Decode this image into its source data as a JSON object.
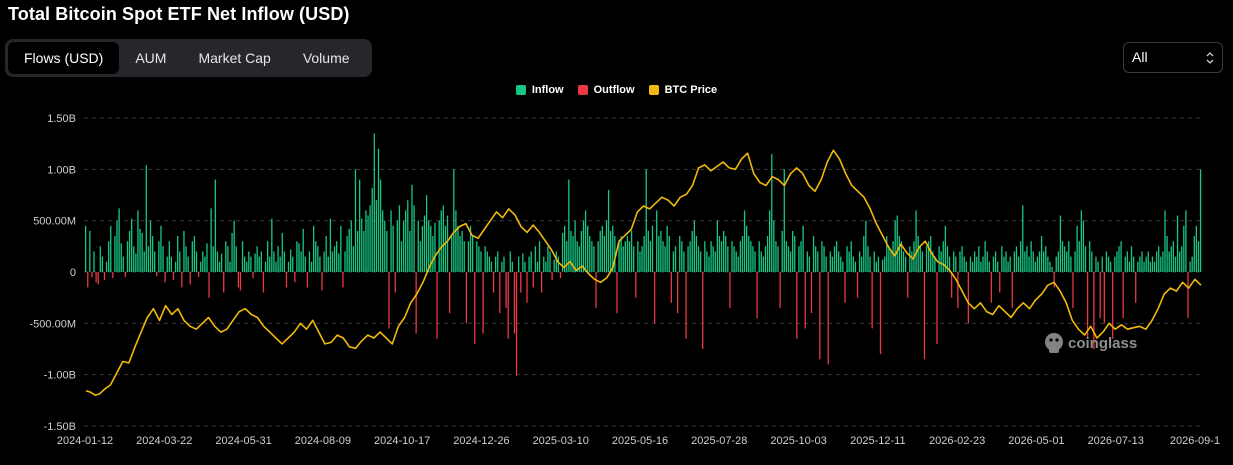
{
  "title": "Total Bitcoin Spot ETF Net Inflow (USD)",
  "tabs": [
    {
      "label": "Flows (USD)",
      "active": true
    },
    {
      "label": "AUM",
      "active": false
    },
    {
      "label": "Market Cap",
      "active": false
    },
    {
      "label": "Volume",
      "active": false
    }
  ],
  "range_select": {
    "value": "All"
  },
  "watermark": "coinglass",
  "colors": {
    "inflow": "#16c784",
    "outflow": "#ea3943",
    "btc_price": "#f0b90b",
    "grid": "#3a3a3a",
    "axis_text": "#cfcfcf"
  },
  "chart_data": {
    "type": "bar",
    "title": "Total Bitcoin Spot ETF Net Inflow (USD)",
    "legend": [
      {
        "name": "Inflow",
        "color": "#16c784"
      },
      {
        "name": "Outflow",
        "color": "#ea3943"
      },
      {
        "name": "BTC Price",
        "color": "#f0b90b"
      }
    ],
    "legend_position": "top-center",
    "grid": true,
    "y_ticks": [
      "1.50B",
      "1.00B",
      "500.00M",
      "0",
      "-500.00M",
      "-1.00B",
      "-1.50B"
    ],
    "ylim": [
      -1500000000,
      1500000000
    ],
    "x_ticks": [
      "2024-01-12",
      "2024-03-22",
      "2024-05-31",
      "2024-08-09",
      "2024-10-17",
      "2024-12-26",
      "2025-03-10",
      "2025-05-16",
      "2025-07-28",
      "2025-10-03",
      "2025-12-11",
      "2026-02-23",
      "2026-05-01",
      "2026-07-13",
      "2026-09-1"
    ],
    "flow_series": {
      "name": "Net Inflow",
      "unit": "USD",
      "values_millions": [
        450,
        -150,
        400,
        -50,
        200,
        -100,
        -120,
        250,
        150,
        -80,
        100,
        300,
        450,
        -60,
        350,
        500,
        620,
        280,
        150,
        -50,
        300,
        400,
        520,
        250,
        180,
        600,
        420,
        380,
        200,
        1040,
        250,
        500,
        350,
        200,
        -40,
        300,
        450,
        250,
        -100,
        150,
        300,
        150,
        -80,
        100,
        350,
        200,
        -150,
        400,
        250,
        150,
        -120,
        300,
        350,
        200,
        -50,
        100,
        200,
        150,
        280,
        -250,
        620,
        250,
        900,
        200,
        100,
        180,
        -200,
        300,
        250,
        100,
        380,
        500,
        250,
        -150,
        -180,
        300,
        150,
        100,
        200,
        150,
        -60,
        180,
        250,
        150,
        200,
        -200,
        100,
        300,
        150,
        520,
        200,
        100,
        250,
        150,
        380,
        200,
        -150,
        100,
        220,
        150,
        -100,
        300,
        280,
        200,
        420,
        150,
        -150,
        200,
        100,
        450,
        300,
        250,
        150,
        -180,
        200,
        350,
        150,
        520,
        200,
        250,
        300,
        180,
        450,
        -150,
        200,
        350,
        420,
        500,
        250,
        1000,
        400,
        900,
        520,
        400,
        600,
        550,
        650,
        820,
        1350,
        700,
        1200,
        900,
        600,
        500,
        400,
        -550,
        600,
        450,
        -200,
        500,
        650,
        300,
        500,
        600,
        700,
        400,
        850,
        650,
        -600,
        500,
        300,
        450,
        550,
        750,
        500,
        450,
        350,
        480,
        -650,
        500,
        600,
        650,
        450,
        550,
        -400,
        350,
        1000,
        600,
        450,
        350,
        400,
        300,
        -500,
        300,
        450,
        350,
        -700,
        300,
        250,
        200,
        -600,
        250,
        200,
        150,
        100,
        -200,
        150,
        200,
        -400,
        100,
        150,
        -350,
        -650,
        200,
        100,
        -600,
        -1010,
        150,
        -200,
        180,
        100,
        -300,
        150,
        200,
        -150,
        250,
        100,
        300,
        -200,
        150,
        100,
        250,
        200,
        -80,
        120,
        200,
        150,
        -60,
        380,
        450,
        300,
        900,
        400,
        350,
        500,
        300,
        250,
        400,
        500,
        600,
        450,
        350,
        300,
        250,
        -350,
        300,
        400,
        450,
        350,
        500,
        800,
        400,
        450,
        350,
        -400,
        300,
        350,
        250,
        300,
        350,
        300,
        400,
        250,
        -250,
        300,
        200,
        250,
        350,
        1000,
        400,
        300,
        450,
        -500,
        600,
        350,
        400,
        300,
        250,
        450,
        350,
        -300,
        200,
        250,
        -400,
        350,
        300,
        200,
        -650,
        250,
        300,
        400,
        500,
        350,
        250,
        200,
        -750,
        300,
        200,
        150,
        300,
        250,
        200,
        500,
        350,
        300,
        400,
        350,
        250,
        -350,
        300,
        250,
        200,
        150,
        300,
        350,
        600,
        450,
        350,
        300,
        250,
        200,
        -450,
        300,
        200,
        150,
        250,
        350,
        600,
        1150,
        500,
        300,
        250,
        -350,
        400,
        1000,
        300,
        250,
        200,
        400,
        350,
        -650,
        250,
        300,
        450,
        -550,
        200,
        150,
        -400,
        350,
        250,
        200,
        -850,
        300,
        250,
        150,
        -900,
        200,
        150,
        250,
        300,
        200,
        150,
        100,
        -300,
        250,
        200,
        300,
        150,
        100,
        -250,
        200,
        150,
        350,
        500,
        250,
        150,
        -550,
        200,
        100,
        150,
        -800,
        120,
        150,
        350,
        250,
        200,
        300,
        500,
        550,
        350,
        300,
        200,
        150,
        -250,
        250,
        200,
        300,
        600,
        350,
        250,
        200,
        -850,
        250,
        300,
        350,
        200,
        150,
        -700,
        250,
        200,
        300,
        450,
        250,
        150,
        -250,
        200,
        150,
        -350,
        200,
        250,
        150,
        100,
        -500,
        150,
        100,
        200,
        150,
        250,
        100,
        150,
        300,
        200,
        100,
        -300,
        150,
        200,
        100,
        -200,
        250,
        150,
        200,
        100,
        150,
        -350,
        200,
        250,
        150,
        300,
        650,
        200,
        250,
        150,
        300,
        200,
        100,
        150,
        200,
        350,
        200,
        250,
        150,
        100,
        50,
        -150,
        150,
        200,
        550,
        300,
        250,
        200,
        300,
        150,
        -350,
        200,
        450,
        300,
        600,
        500,
        250,
        -650,
        300,
        200,
        -750,
        150,
        100,
        -450,
        150,
        -500,
        200,
        150,
        100,
        -650,
        150,
        200,
        250,
        300,
        -450,
        150,
        200,
        100,
        250,
        150,
        -300,
        100,
        150,
        200,
        100,
        150,
        200,
        100,
        150,
        100,
        200,
        250,
        150,
        200,
        600,
        350,
        200,
        250,
        300,
        150,
        550,
        200,
        250,
        450,
        600,
        -450,
        100,
        150,
        350,
        450,
        300,
        1000
      ]
    },
    "price_series": {
      "name": "BTC Price",
      "unit": "USD",
      "points": [
        [
          0,
          42000
        ],
        [
          3,
          41500
        ],
        [
          6,
          40500
        ],
        [
          9,
          41000
        ],
        [
          12,
          42500
        ],
        [
          16,
          44000
        ],
        [
          20,
          48000
        ],
        [
          24,
          52000
        ],
        [
          28,
          51500
        ],
        [
          32,
          57000
        ],
        [
          36,
          62000
        ],
        [
          40,
          67000
        ],
        [
          44,
          70000
        ],
        [
          48,
          66000
        ],
        [
          52,
          71000
        ],
        [
          56,
          68000
        ],
        [
          60,
          70000
        ],
        [
          64,
          66000
        ],
        [
          68,
          64000
        ],
        [
          72,
          63000
        ],
        [
          76,
          65000
        ],
        [
          80,
          67000
        ],
        [
          84,
          64000
        ],
        [
          88,
          62000
        ],
        [
          92,
          63000
        ],
        [
          96,
          66000
        ],
        [
          100,
          69000
        ],
        [
          104,
          70000
        ],
        [
          108,
          68000
        ],
        [
          112,
          67000
        ],
        [
          116,
          64000
        ],
        [
          120,
          62000
        ],
        [
          124,
          60000
        ],
        [
          128,
          58000
        ],
        [
          132,
          60000
        ],
        [
          136,
          62000
        ],
        [
          140,
          65000
        ],
        [
          144,
          63000
        ],
        [
          148,
          66000
        ],
        [
          152,
          62000
        ],
        [
          156,
          58000
        ],
        [
          160,
          58500
        ],
        [
          164,
          61000
        ],
        [
          168,
          60000
        ],
        [
          172,
          57000
        ],
        [
          176,
          56500
        ],
        [
          180,
          59000
        ],
        [
          184,
          61000
        ],
        [
          188,
          60000
        ],
        [
          192,
          62000
        ],
        [
          196,
          60000
        ],
        [
          200,
          58000
        ],
        [
          204,
          64000
        ],
        [
          208,
          67000
        ],
        [
          212,
          72000
        ],
        [
          216,
          75000
        ],
        [
          220,
          79000
        ],
        [
          224,
          84000
        ],
        [
          228,
          88000
        ],
        [
          232,
          91000
        ],
        [
          236,
          93000
        ],
        [
          240,
          96000
        ],
        [
          244,
          98000
        ],
        [
          248,
          99000
        ],
        [
          252,
          95000
        ],
        [
          256,
          94000
        ],
        [
          260,
          97000
        ],
        [
          264,
          100000
        ],
        [
          268,
          103000
        ],
        [
          272,
          101000
        ],
        [
          276,
          104000
        ],
        [
          280,
          102000
        ],
        [
          284,
          98000
        ],
        [
          288,
          96000
        ],
        [
          292,
          98500
        ],
        [
          296,
          96000
        ],
        [
          300,
          93000
        ],
        [
          304,
          90000
        ],
        [
          308,
          86000
        ],
        [
          312,
          84000
        ],
        [
          316,
          86000
        ],
        [
          320,
          83000
        ],
        [
          324,
          84500
        ],
        [
          328,
          82000
        ],
        [
          332,
          80000
        ],
        [
          336,
          79000
        ],
        [
          340,
          80500
        ],
        [
          344,
          84000
        ],
        [
          348,
          93000
        ],
        [
          352,
          95000
        ],
        [
          356,
          97000
        ],
        [
          360,
          103000
        ],
        [
          364,
          105000
        ],
        [
          368,
          104000
        ],
        [
          372,
          106000
        ],
        [
          376,
          108000
        ],
        [
          380,
          107000
        ],
        [
          384,
          105000
        ],
        [
          388,
          108000
        ],
        [
          392,
          109000
        ],
        [
          396,
          112000
        ],
        [
          400,
          118000
        ],
        [
          404,
          119000
        ],
        [
          408,
          117000
        ],
        [
          412,
          118500
        ],
        [
          416,
          120000
        ],
        [
          420,
          118000
        ],
        [
          424,
          117500
        ],
        [
          428,
          121000
        ],
        [
          432,
          123000
        ],
        [
          436,
          116000
        ],
        [
          440,
          113000
        ],
        [
          444,
          112000
        ],
        [
          448,
          115000
        ],
        [
          452,
          114000
        ],
        [
          456,
          112000
        ],
        [
          460,
          116000
        ],
        [
          464,
          118000
        ],
        [
          468,
          116000
        ],
        [
          472,
          112000
        ],
        [
          476,
          110000
        ],
        [
          480,
          114000
        ],
        [
          484,
          120000
        ],
        [
          488,
          124000
        ],
        [
          492,
          121000
        ],
        [
          496,
          116000
        ],
        [
          500,
          112000
        ],
        [
          504,
          110000
        ],
        [
          508,
          108000
        ],
        [
          512,
          104000
        ],
        [
          516,
          99000
        ],
        [
          520,
          95000
        ],
        [
          524,
          91000
        ],
        [
          528,
          88000
        ],
        [
          532,
          92000
        ],
        [
          536,
          89000
        ],
        [
          540,
          87000
        ],
        [
          544,
          91000
        ],
        [
          548,
          93000
        ],
        [
          552,
          89000
        ],
        [
          556,
          86000
        ],
        [
          560,
          85000
        ],
        [
          564,
          83000
        ],
        [
          568,
          80000
        ],
        [
          572,
          76000
        ],
        [
          576,
          72000
        ],
        [
          580,
          70000
        ],
        [
          584,
          72000
        ],
        [
          588,
          69000
        ],
        [
          592,
          68000
        ],
        [
          596,
          71000
        ],
        [
          600,
          69000
        ],
        [
          604,
          67000
        ],
        [
          608,
          70000
        ],
        [
          612,
          72000
        ],
        [
          616,
          70000
        ],
        [
          620,
          73000
        ],
        [
          624,
          75000
        ],
        [
          628,
          78000
        ],
        [
          632,
          79000
        ],
        [
          636,
          76000
        ],
        [
          640,
          72000
        ],
        [
          644,
          66000
        ],
        [
          648,
          63000
        ],
        [
          652,
          61000
        ],
        [
          656,
          64000
        ],
        [
          660,
          60000
        ],
        [
          664,
          62000
        ],
        [
          668,
          65000
        ],
        [
          672,
          63000
        ],
        [
          676,
          64500
        ],
        [
          680,
          63000
        ],
        [
          684,
          63500
        ],
        [
          688,
          64000
        ],
        [
          692,
          63000
        ],
        [
          696,
          66000
        ],
        [
          700,
          70000
        ],
        [
          704,
          75000
        ],
        [
          708,
          77000
        ],
        [
          712,
          76000
        ],
        [
          716,
          79000
        ],
        [
          720,
          77000
        ],
        [
          724,
          80000
        ],
        [
          728,
          78000
        ]
      ]
    }
  }
}
